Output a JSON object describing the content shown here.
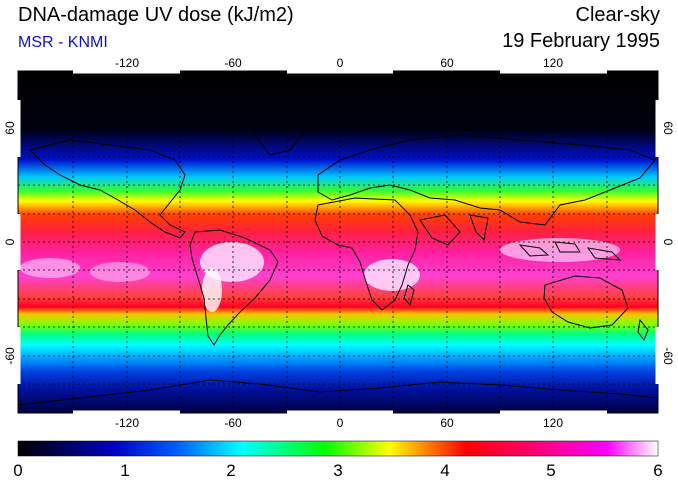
{
  "header": {
    "title": "DNA-damage UV dose (kJ/m2)",
    "subtitle": "MSR - KNMI",
    "condition": "Clear-sky",
    "date": "19 February 1995"
  },
  "axes": {
    "lon_ticks": [
      "-120",
      "-60",
      "0",
      "60",
      "120"
    ],
    "lat_ticks": [
      "60",
      "0",
      "-60"
    ]
  },
  "colorbar": {
    "labels": [
      "0",
      "1",
      "2",
      "3",
      "4",
      "5",
      "6"
    ],
    "stops": [
      "#000000",
      "#0000b0",
      "#0080ff",
      "#00ffff",
      "#00ff00",
      "#ffff00",
      "#ff0000",
      "#ff0080",
      "#ff00ff",
      "#ffffff"
    ]
  }
}
